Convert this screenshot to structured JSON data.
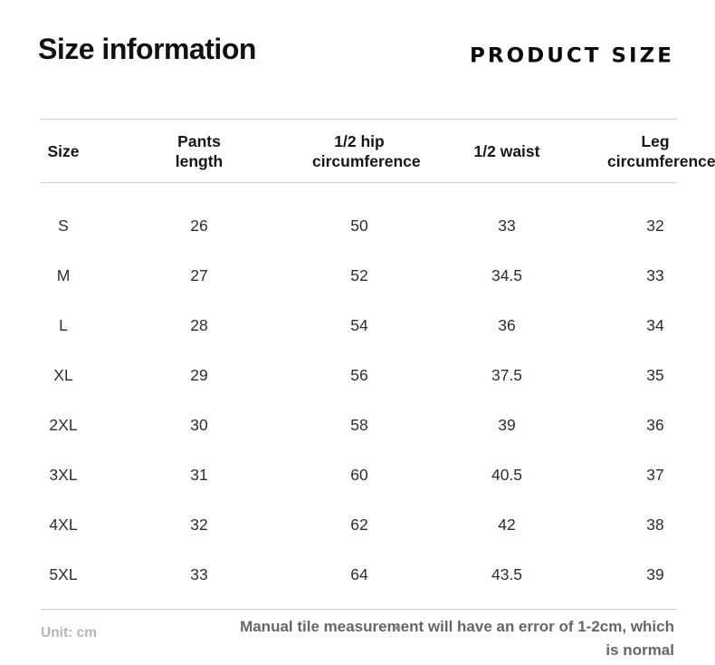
{
  "header": {
    "title": "Size information",
    "badge": "PRODUCT SIZE"
  },
  "table": {
    "columns_display": [
      "Size",
      "Pants\nlength",
      "1/2 hip\ncircumference",
      "1/2 waist",
      "Leg\ncircumference"
    ]
  },
  "chart_data": {
    "type": "table",
    "title": "Size information",
    "columns": [
      "Size",
      "Pants length",
      "1/2 hip circumference",
      "1/2 waist",
      "Leg circumference"
    ],
    "rows": [
      [
        "S",
        26,
        50,
        33,
        32
      ],
      [
        "M",
        27,
        52,
        34.5,
        33
      ],
      [
        "L",
        28,
        54,
        36,
        34
      ],
      [
        "XL",
        29,
        56,
        37.5,
        35
      ],
      [
        "2XL",
        30,
        58,
        39,
        36
      ],
      [
        "3XL",
        31,
        60,
        40.5,
        37
      ],
      [
        "4XL",
        32,
        62,
        42,
        38
      ],
      [
        "5XL",
        33,
        64,
        43.5,
        39
      ]
    ],
    "unit": "cm"
  },
  "footer": {
    "unit_label": "Unit: cm",
    "note_lines": [
      "Manual tile measurement will have an error of 1-2cm, which",
      "is normal"
    ]
  },
  "colors": {
    "heading": "#111111",
    "body_text": "#2d2d2d",
    "rule_line": "#cccccc",
    "unit_muted": "#b5b5b5",
    "note_gray": "#666666"
  }
}
